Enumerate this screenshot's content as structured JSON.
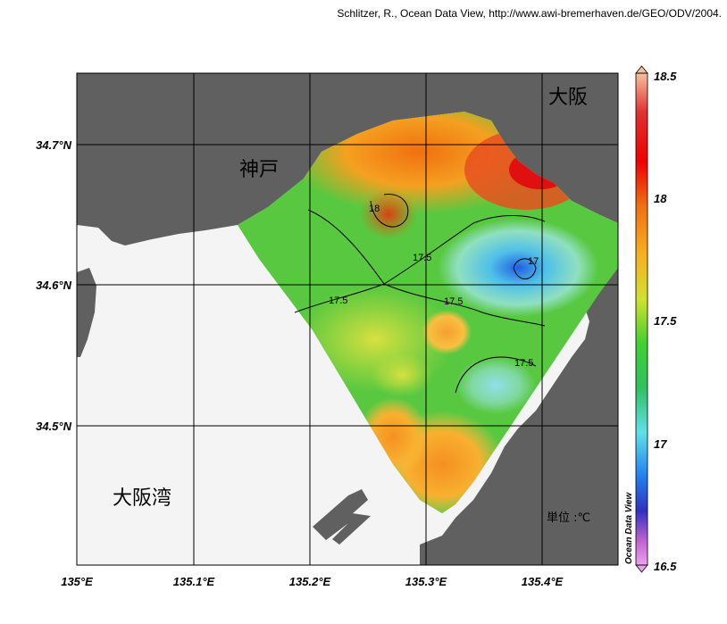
{
  "credit": "Schlitzer, R., Ocean Data View, http://www.awi-bremerhaven.de/GEO/ODV/2004.",
  "map": {
    "lon_ticks": [
      "135°E",
      "135.1°E",
      "135.2°E",
      "135.3°E",
      "135.4°E"
    ],
    "lat_ticks": [
      "34.7°N",
      "34.6°N",
      "34.5°N"
    ],
    "place_labels": {
      "kobe": "神戸",
      "osaka": "大阪",
      "osaka_bay": "大阪湾"
    },
    "unit_label": "単位 :℃",
    "contour_labels": [
      "18",
      "17.5",
      "17.5",
      "17.5",
      "17.5",
      "17"
    ],
    "colors": {
      "land": "#606060",
      "no_data": "#f4f4f4",
      "grid": "#000000"
    }
  },
  "colorbar": {
    "ticks": [
      "18.5",
      "18",
      "17.5",
      "17",
      "16.5"
    ],
    "title": "Ocean Data View",
    "range": [
      16.5,
      18.5
    ]
  }
}
